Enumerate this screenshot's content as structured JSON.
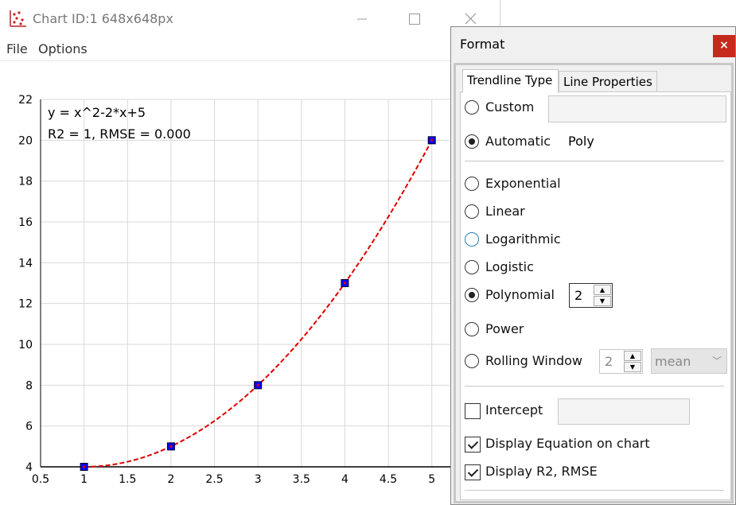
{
  "window": {
    "title": "Chart ID:1 648x648px",
    "controls": {
      "minimize": "—",
      "maximize": "☐",
      "close": "✕"
    }
  },
  "menu": {
    "file": "File",
    "options": "Options"
  },
  "chart": {
    "equation": "y = x^2-2*x+5",
    "stats": "R2 = 1, RMSE = 0.000",
    "colors": {
      "marker_fill": "#0000ff",
      "marker_inner": "#dd0000",
      "trendline": "#e00000",
      "grid": "#d9d9d9"
    }
  },
  "chart_data": {
    "type": "scatter",
    "x": [
      1,
      2,
      3,
      4,
      5
    ],
    "y": [
      4,
      5,
      8,
      13,
      20
    ],
    "xlim": [
      0.5,
      5.25
    ],
    "ylim": [
      4,
      22
    ],
    "xticks": [
      "0.5",
      "1",
      "1.5",
      "2",
      "2.5",
      "3",
      "3.5",
      "4",
      "4.5",
      "5"
    ],
    "yticks": [
      "4",
      "6",
      "8",
      "10",
      "12",
      "14",
      "16",
      "18",
      "20",
      "22"
    ],
    "trendline": {
      "type": "polynomial",
      "degree": 2,
      "coefficients": [
        1,
        -2,
        5
      ]
    },
    "grid": true
  },
  "format": {
    "title": "Format",
    "close_label": "×",
    "tabs": {
      "trendline_type": "Trendline Type",
      "line_properties": "Line Properties"
    },
    "options": {
      "custom": "Custom",
      "automatic": "Automatic",
      "automatic_value": "Poly",
      "exponential": "Exponential",
      "linear": "Linear",
      "logarithmic": "Logarithmic",
      "logistic": "Logistic",
      "polynomial": "Polynomial",
      "polynomial_order": "2",
      "power": "Power",
      "rolling_window": "Rolling Window",
      "rolling_window_size": "2",
      "rolling_window_agg": "mean"
    },
    "checks": {
      "intercept": "Intercept",
      "display_equation": "Display Equation on chart",
      "display_r2": "Display R2, RMSE"
    },
    "icons": {
      "spin_up": "▲",
      "spin_down": "▼",
      "dropdown": "﹀"
    }
  }
}
